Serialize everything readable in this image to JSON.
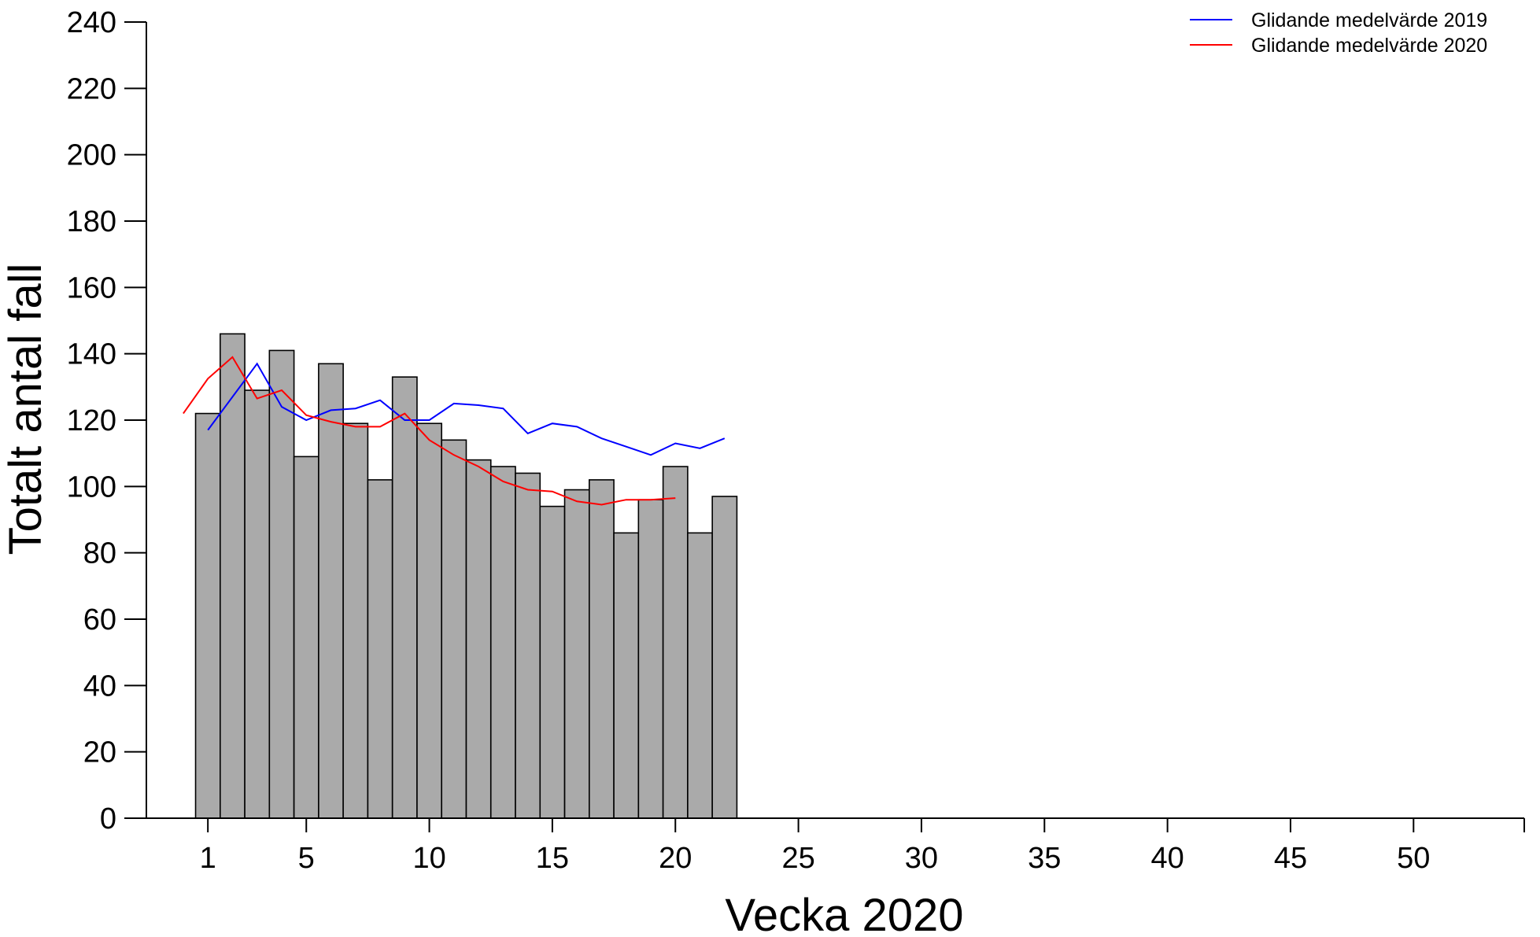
{
  "chart_data": {
    "type": "bar",
    "xlabel": "Vecka 2020",
    "ylabel": "Totalt antal fall",
    "ylim": [
      0,
      240
    ],
    "xlim": [
      -1.5,
      54.5
    ],
    "yticks": [
      0,
      20,
      40,
      60,
      80,
      100,
      120,
      140,
      160,
      180,
      200,
      220,
      240
    ],
    "xticks": [
      1,
      5,
      10,
      15,
      20,
      25,
      30,
      35,
      40,
      45,
      50
    ],
    "bar_color": "#aaaaaa",
    "bars": {
      "x": [
        1,
        2,
        3,
        4,
        5,
        6,
        7,
        8,
        9,
        10,
        11,
        12,
        13,
        14,
        15,
        16,
        17,
        18,
        19,
        20,
        21,
        22
      ],
      "values": [
        122,
        146,
        129,
        141,
        109,
        137,
        119,
        102,
        133,
        119,
        114,
        108,
        106,
        104,
        94,
        99,
        102,
        86,
        96,
        106,
        86,
        97
      ]
    },
    "series": [
      {
        "name": "Glidande medelvärde 2019",
        "color": "#0000ff",
        "x": [
          1,
          2,
          3,
          4,
          5,
          6,
          7,
          8,
          9,
          10,
          11,
          12,
          13,
          14,
          15,
          16,
          17,
          18,
          19,
          20,
          21,
          22
        ],
        "values": [
          117,
          127,
          137,
          124,
          120,
          123,
          123.5,
          126,
          120,
          120,
          125,
          124.5,
          123.5,
          116,
          119,
          118,
          114.5,
          112,
          109.5,
          113,
          111.5,
          114.5
        ]
      },
      {
        "name": "Glidande medelvärde 2020",
        "color": "#ff0000",
        "x": [
          0,
          1,
          2,
          3,
          4,
          5,
          6,
          7,
          8,
          9,
          10,
          11,
          12,
          13,
          14,
          15,
          16,
          17,
          18,
          19,
          20
        ],
        "values": [
          122,
          132.5,
          139,
          126.5,
          129,
          121.5,
          119.5,
          118,
          118,
          122,
          114,
          109.5,
          106,
          101.5,
          99,
          98.5,
          95.5,
          94.5,
          96,
          96,
          96.5
        ]
      }
    ],
    "legend": {
      "placement": "top-right"
    }
  }
}
